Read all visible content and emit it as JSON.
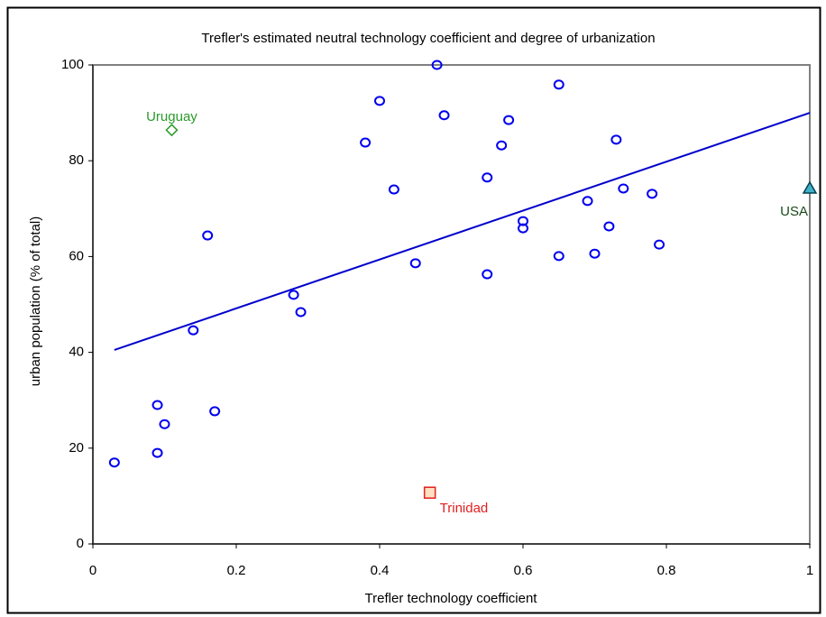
{
  "chart_data": {
    "type": "scatter",
    "title": "Trefler's estimated neutral technology coefficient and degree of urbanization",
    "x_label": "Trefler technology coefficient",
    "y_label": "urban population (% of total)",
    "xlim": [
      0,
      1
    ],
    "xticks": [
      0,
      0.2,
      0.4,
      0.6,
      0.8,
      1
    ],
    "ylim": [
      0,
      100
    ],
    "yticks": [
      0,
      20,
      40,
      60,
      80,
      100
    ],
    "grid": false,
    "color": "#0000ee",
    "x": [
      0.03,
      0.09,
      0.1,
      0.09,
      0.17,
      0.14,
      0.16,
      0.28,
      0.29,
      0.38,
      0.4,
      0.42,
      0.45,
      0.48,
      0.49,
      0.55,
      0.55,
      0.57,
      0.58,
      0.6,
      0.6,
      0.65,
      0.65,
      0.69,
      0.7,
      0.72,
      0.73,
      0.74,
      0.78,
      0.79
    ],
    "values": [
      17,
      19,
      25,
      29,
      27.7,
      44.6,
      64.4,
      52,
      48.4,
      83.8,
      92.5,
      74,
      58.6,
      100,
      89.5,
      76.5,
      56.3,
      83.2,
      88.5,
      67.4,
      65.9,
      95.9,
      60.1,
      71.6,
      60.6,
      66.3,
      84.4,
      74.2,
      73.1,
      62.5
    ],
    "trendline": {
      "x": [
        0.03,
        1
      ],
      "y": [
        40.5,
        90
      ],
      "color": "#0000cc"
    },
    "labeled_points": [
      {
        "label": "Uruguay",
        "x": 0.11,
        "y": 86.4,
        "color": "#2a9a2a",
        "marker": "diamond"
      },
      {
        "label": "Trinidad",
        "x": 0.47,
        "y": 10.7,
        "color": "#e02020",
        "marker": "square"
      },
      {
        "label": "USA",
        "x": 1,
        "y": 74.2,
        "color": "#1a4a1a",
        "marker": "triangle"
      }
    ]
  }
}
